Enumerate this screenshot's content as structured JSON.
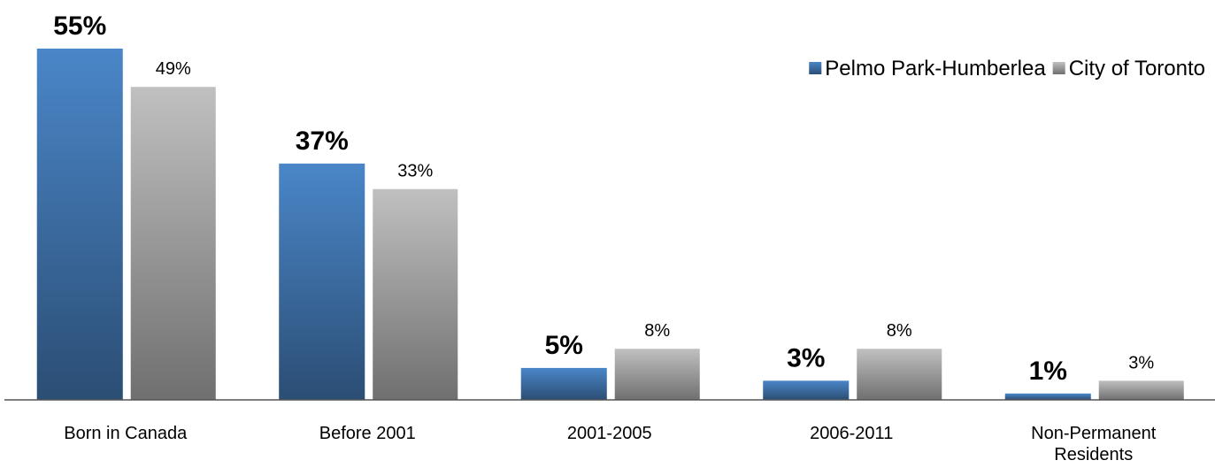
{
  "chart_data": {
    "type": "bar",
    "categories": [
      "Born in Canada",
      "Before 2001",
      "2001-2005",
      "2006-2011",
      "Non-Permanent Residents"
    ],
    "series": [
      {
        "name": "Pelmo Park-Humberlea",
        "color": "#4a86c8",
        "values": [
          55,
          37,
          5,
          3,
          1
        ],
        "value_labels": [
          "55%",
          "37%",
          "5%",
          "3%",
          "1%"
        ]
      },
      {
        "name": "City of Toronto",
        "color": "#c0c0c0",
        "values": [
          49,
          33,
          8,
          8,
          3
        ],
        "value_labels": [
          "49%",
          "33%",
          "8%",
          "8%",
          "3%"
        ]
      }
    ],
    "legend": "top-right"
  }
}
